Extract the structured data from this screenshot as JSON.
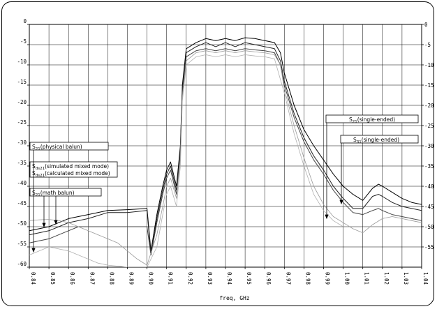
{
  "chart_data": {
    "type": "line",
    "xlabel": "freq, GHz",
    "ylabel": "",
    "xlim": [
      0.84,
      1.04
    ],
    "ylim": [
      -60,
      0
    ],
    "x_ticks": [
      "0.84",
      "0.85",
      "0.86",
      "0.87",
      "0.88",
      "0.89",
      "0.90",
      "0.91",
      "0.92",
      "0.93",
      "0.94",
      "0.95",
      "0.96",
      "0.97",
      "0.98",
      "0.99",
      "1.00",
      "1.01",
      "1.02",
      "1.03",
      "1.04"
    ],
    "y_ticks_left": [
      "0",
      "-5",
      "-10",
      "-15",
      "-20",
      "-25",
      "-30",
      "-35",
      "-40",
      "-45",
      "-50",
      "-55",
      "-60"
    ],
    "y_ticks_right": [
      "0",
      "-5",
      "-10",
      "-15",
      "-20",
      "-25",
      "-30",
      "-35",
      "-40",
      "-45",
      "-50",
      "-55"
    ],
    "grid": true,
    "annotations": {
      "s21_physical": {
        "main": "S",
        "sub": "21",
        "rest": "(physical balun)"
      },
      "sds21_simulated": {
        "main": "S",
        "sub": "ds21",
        "rest": "(simulated mixed mode)"
      },
      "sds21_calculated": {
        "main": "S",
        "sub": "ds21",
        "rest": "(calculated mixed mode)"
      },
      "s21_math": {
        "main": "S",
        "sub": "21",
        "rest": "(math balun)"
      },
      "s21_single": {
        "main": "S",
        "sub": "21",
        "rest": "(single-ended)"
      },
      "s31_single": {
        "main": "S",
        "sub": "31",
        "rest": "(single-ended)"
      }
    },
    "series": [
      {
        "color": "#000000",
        "x": [
          0.84,
          0.845,
          0.85,
          0.855,
          0.86,
          0.87,
          0.88,
          0.89,
          0.9,
          0.902,
          0.905,
          0.908,
          0.91,
          0.912,
          0.915,
          0.917,
          0.918,
          0.92,
          0.925,
          0.93,
          0.935,
          0.94,
          0.945,
          0.95,
          0.955,
          0.96,
          0.965,
          0.968,
          0.97,
          0.975,
          0.98,
          0.985,
          0.99,
          0.995,
          1.0,
          1.005,
          1.01,
          1.015,
          1.018,
          1.02,
          1.025,
          1.03,
          1.035,
          1.04
        ],
        "y": [
          -51,
          -50.5,
          -50,
          -49,
          -48,
          -47,
          -46,
          -45.8,
          -45.5,
          -56,
          -47,
          -40,
          -36,
          -34,
          -40,
          -30,
          -15,
          -6,
          -4.5,
          -3.5,
          -4,
          -3.5,
          -4,
          -3.3,
          -3.5,
          -4,
          -4.5,
          -7,
          -12,
          -20,
          -26,
          -30,
          -33.5,
          -37,
          -40,
          -42,
          -43.5,
          -40.5,
          -39.5,
          -40,
          -41.5,
          -43,
          -44,
          -44.5
        ]
      },
      {
        "color": "#222222",
        "x": [
          0.84,
          0.845,
          0.85,
          0.855,
          0.86,
          0.87,
          0.88,
          0.89,
          0.9,
          0.902,
          0.905,
          0.908,
          0.91,
          0.912,
          0.915,
          0.917,
          0.918,
          0.92,
          0.925,
          0.93,
          0.935,
          0.94,
          0.945,
          0.95,
          0.955,
          0.96,
          0.965,
          0.968,
          0.97,
          0.975,
          0.98,
          0.985,
          0.99,
          0.995,
          1.0,
          1.005,
          1.01,
          1.015,
          1.018,
          1.02,
          1.025,
          1.03,
          1.035,
          1.04
        ],
        "y": [
          -52,
          -51.5,
          -51,
          -50,
          -49,
          -48,
          -46.5,
          -46.5,
          -46,
          -57,
          -48,
          -41,
          -37,
          -35,
          -41,
          -31,
          -16,
          -7,
          -5.5,
          -4.5,
          -5.5,
          -4.5,
          -5.5,
          -4.5,
          -5,
          -5.5,
          -6,
          -9,
          -14,
          -22,
          -28,
          -32.5,
          -36,
          -40,
          -43,
          -45.5,
          -45.5,
          -42.5,
          -42,
          -42.5,
          -44,
          -45,
          -45.5,
          -46
        ]
      },
      {
        "color": "#444444",
        "x": [
          0.84,
          0.845,
          0.85,
          0.855,
          0.86,
          0.865,
          0.87,
          0.88,
          0.89,
          0.9,
          0.902,
          0.905,
          0.908,
          0.91,
          0.912,
          0.915,
          0.917,
          0.918,
          0.92,
          0.925,
          0.93,
          0.935,
          0.94,
          0.945,
          0.95,
          0.955,
          0.96,
          0.965,
          0.968,
          0.97,
          0.975,
          0.98,
          0.985,
          0.99,
          0.995,
          1.0,
          1.005,
          1.01,
          1.015,
          1.018,
          1.02,
          1.025,
          1.03,
          1.035,
          1.04
        ],
        "y": [
          -54,
          -53.5,
          -53,
          -52,
          -51,
          -50,
          -50,
          -50,
          -50,
          -50,
          -57,
          -49,
          -42,
          -38,
          -36,
          -42,
          -32,
          -17,
          -8,
          -6.5,
          -6,
          -6.5,
          -6,
          -6.5,
          -6,
          -6.3,
          -6.5,
          -7,
          -10,
          -15,
          -23,
          -29,
          -33.5,
          -37,
          -41,
          -44,
          -46.5,
          -47,
          -46,
          -45.5,
          -46,
          -47,
          -47.5,
          -48,
          -48.5
        ]
      },
      {
        "color": "#9a9a9a",
        "x": [
          0.84,
          0.845,
          0.85,
          0.855,
          0.86,
          0.865,
          0.87,
          0.875,
          0.88,
          0.885,
          0.89,
          0.895,
          0.9,
          0.905,
          0.908,
          0.91,
          0.912,
          0.915,
          0.917,
          0.918,
          0.92,
          0.925,
          0.93,
          0.935,
          0.94,
          0.945,
          0.95,
          0.955,
          0.96,
          0.965,
          0.968,
          0.97,
          0.975,
          0.98,
          0.985,
          0.99,
          0.995,
          1.0,
          1.005,
          1.01,
          1.015,
          1.02,
          1.025,
          1.03,
          1.035,
          1.04
        ],
        "y": [
          -48.5,
          -48.3,
          -48.2,
          -48.5,
          -49,
          -50,
          -51,
          -52,
          -53,
          -54,
          -56,
          -58,
          -59.5,
          -52,
          -45,
          -40,
          -38,
          -43,
          -33,
          -18,
          -9,
          -7,
          -6.5,
          -7,
          -6.5,
          -7,
          -6.5,
          -6.8,
          -7,
          -7.5,
          -10,
          -16,
          -25,
          -33,
          -40,
          -44.5,
          -47.5,
          -49,
          -50.5,
          -51.5,
          -49.5,
          -48,
          -47.5,
          -48,
          -48.5,
          -49
        ]
      },
      {
        "color": "#b0b0b0",
        "x": [
          0.84,
          0.845,
          0.85,
          0.855,
          0.86,
          0.865,
          0.87,
          0.875,
          0.88,
          0.89,
          0.9,
          0.905,
          0.908,
          0.91,
          0.912,
          0.915,
          0.917,
          0.918,
          0.92,
          0.925,
          0.93,
          0.935,
          0.94,
          0.945,
          0.95,
          0.955,
          0.96,
          0.965,
          0.97,
          0.975,
          0.98,
          0.985,
          0.99,
          0.995,
          1.0
        ],
        "y": [
          -57,
          -56,
          -55,
          -55.5,
          -56,
          -57,
          -58,
          -59,
          -59.5,
          -60,
          -60,
          -55,
          -47,
          -42,
          -40,
          -45,
          -35,
          -19,
          -10,
          -8,
          -7.5,
          -8,
          -7.5,
          -8,
          -7.5,
          -7.8,
          -8,
          -8.5,
          -17,
          -27,
          -35,
          -42,
          -46,
          -48.5,
          -50
        ]
      }
    ]
  }
}
